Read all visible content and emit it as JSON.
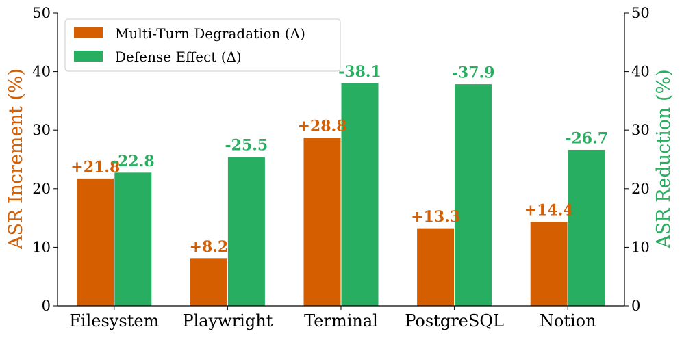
{
  "chart_data": {
    "type": "bar",
    "categories": [
      "Filesystem",
      "Playwright",
      "Terminal",
      "PostgreSQL",
      "Notion"
    ],
    "series": [
      {
        "name": "Multi-Turn Degradation (Δ)",
        "axis": "left",
        "color": "#d55e00",
        "values": [
          21.8,
          8.2,
          28.8,
          13.3,
          14.4
        ],
        "labels": [
          "+21.8",
          "+8.2",
          "+28.8",
          "+13.3",
          "+14.4"
        ]
      },
      {
        "name": "Defense Effect (Δ)",
        "axis": "right",
        "color": "#27ae60",
        "values": [
          22.8,
          25.5,
          38.1,
          37.9,
          26.7
        ],
        "labels": [
          "-22.8",
          "-25.5",
          "-38.1",
          "-37.9",
          "-26.7"
        ]
      }
    ],
    "ylabel_left": "ASR Increment (%)",
    "ylabel_right": "ASR Reduction (%)",
    "ylim": [
      0,
      50
    ],
    "yticks": [
      "0",
      "10",
      "20",
      "30",
      "40",
      "50"
    ],
    "legend_position": "top-left",
    "grid": false
  }
}
